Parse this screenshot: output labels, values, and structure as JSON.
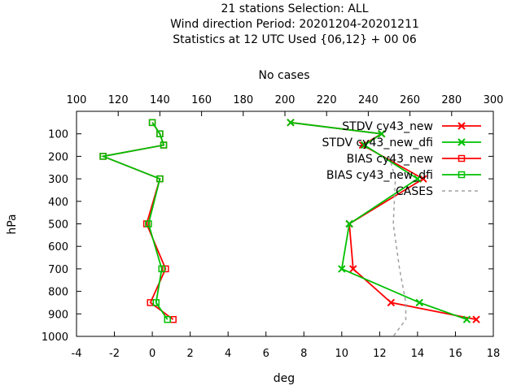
{
  "chart_data": {
    "type": "line",
    "title_lines": [
      "21 stations Selection: ALL",
      "Wind direction  Period: 20201204-20201211",
      "Statistics at 12 UTC  Used {06,12} + 00 06"
    ],
    "x2label": "No cases",
    "xlabel": "deg",
    "ylabel": "hPa",
    "xlim": [
      -4,
      18
    ],
    "x2lim": [
      100,
      300
    ],
    "ylim": [
      1000,
      0
    ],
    "y_reversed": true,
    "xticks": [
      "-4",
      "-2",
      "0",
      "2",
      "4",
      "6",
      "8",
      "10",
      "12",
      "14",
      "16",
      "18"
    ],
    "x2ticks": [
      "100",
      "120",
      "140",
      "160",
      "180",
      "200",
      "220",
      "240",
      "260",
      "280",
      "300"
    ],
    "yticks": [
      "100",
      "200",
      "300",
      "400",
      "500",
      "600",
      "700",
      "800",
      "900",
      "1000"
    ],
    "legend_position": "top-right",
    "grid": false,
    "series": [
      {
        "name": "STDV cy43_new",
        "color": "#ff0000",
        "marker": "x",
        "x": [
          7.3,
          12.1,
          11.1,
          14.3,
          10.4,
          10.6,
          12.6,
          17.1
        ],
        "y": [
          50,
          100,
          150,
          300,
          500,
          700,
          850,
          925
        ]
      },
      {
        "name": "STDV cy43_new_dfi",
        "color": "#00c000",
        "marker": "x",
        "x": [
          7.3,
          12.1,
          11.2,
          14.0,
          10.4,
          10.0,
          14.1,
          16.6
        ],
        "y": [
          50,
          100,
          150,
          300,
          500,
          700,
          850,
          925
        ]
      },
      {
        "name": "BIAS cy43_new",
        "color": "#ff0000",
        "marker": "square",
        "x": [
          0.0,
          0.4,
          0.6,
          -2.6,
          0.4,
          -0.3,
          0.7,
          -0.1,
          1.1
        ],
        "y": [
          50,
          100,
          150,
          200,
          300,
          500,
          700,
          850,
          925
        ]
      },
      {
        "name": "BIAS cy43_new_dfi",
        "color": "#00c000",
        "marker": "square",
        "x": [
          0.0,
          0.4,
          0.6,
          -2.6,
          0.4,
          -0.2,
          0.5,
          0.2,
          0.8
        ],
        "y": [
          50,
          100,
          150,
          200,
          300,
          500,
          700,
          850,
          925
        ]
      },
      {
        "name": "CASES",
        "color": "#a0a0a0",
        "dashed": true,
        "axis": "x2",
        "x": [
          250,
          253,
          252,
          255,
          258,
          258,
          252
        ],
        "y": [
          200,
          300,
          500,
          700,
          850,
          925,
          1000
        ]
      }
    ]
  }
}
